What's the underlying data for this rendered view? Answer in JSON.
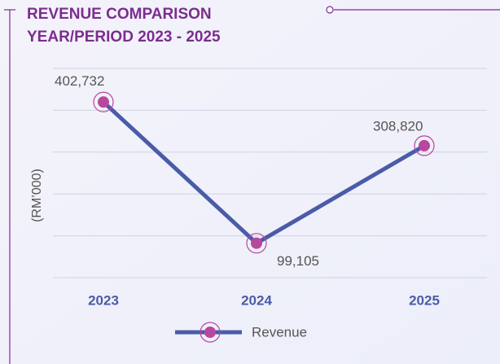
{
  "chart_data": {
    "type": "line",
    "title": "REVENUE COMPARISON",
    "subtitle": "YEAR/PERIOD 2023 - 2025",
    "y_label": "(RM’000)",
    "categories": [
      "2023",
      "2024",
      "2025"
    ],
    "series": [
      {
        "name": "Revenue",
        "color": "#4a5ba8",
        "marker_color": "#b8479e",
        "values": [
          402732,
          99105,
          308820
        ],
        "value_labels": [
          "402,732",
          "99,105",
          "308,820"
        ]
      }
    ],
    "ylim": [
      25000,
      475000
    ],
    "yticks": [
      25000,
      115000,
      205000,
      295000,
      385000,
      475000
    ],
    "grid": true,
    "legend": "bottom"
  }
}
